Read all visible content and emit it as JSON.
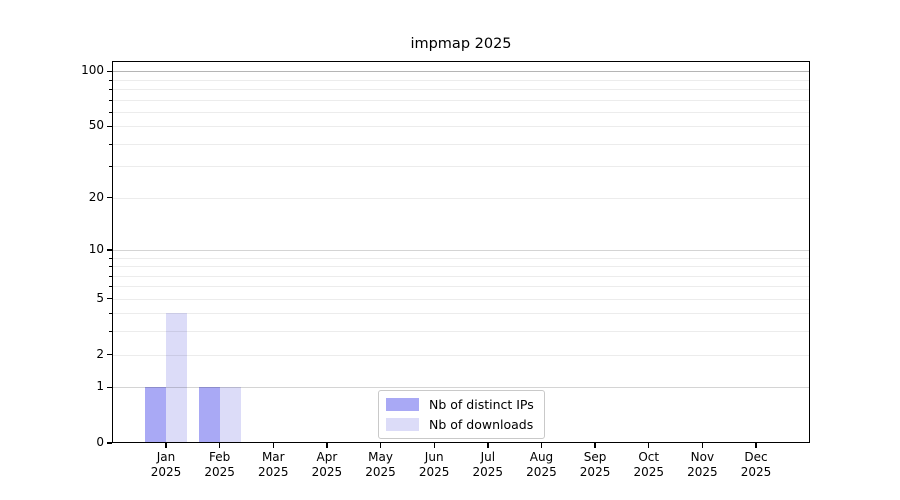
{
  "chart_data": {
    "type": "bar",
    "title": "impmap 2025",
    "categories": [
      {
        "m": "Jan",
        "y": "2025"
      },
      {
        "m": "Feb",
        "y": "2025"
      },
      {
        "m": "Mar",
        "y": "2025"
      },
      {
        "m": "Apr",
        "y": "2025"
      },
      {
        "m": "May",
        "y": "2025"
      },
      {
        "m": "Jun",
        "y": "2025"
      },
      {
        "m": "Jul",
        "y": "2025"
      },
      {
        "m": "Aug",
        "y": "2025"
      },
      {
        "m": "Sep",
        "y": "2025"
      },
      {
        "m": "Oct",
        "y": "2025"
      },
      {
        "m": "Nov",
        "y": "2025"
      },
      {
        "m": "Dec",
        "y": "2025"
      }
    ],
    "series": [
      {
        "name": "Nb of distinct IPs",
        "color": "#a9a9f5",
        "values": [
          1,
          1,
          0,
          0,
          0,
          0,
          0,
          0,
          0,
          0,
          0,
          0
        ]
      },
      {
        "name": "Nb of downloads",
        "color": "#dcdcf8",
        "values": [
          4,
          1,
          0,
          0,
          0,
          0,
          0,
          0,
          0,
          0,
          0,
          0
        ]
      }
    ],
    "scale": "log1p",
    "ylim": [
      0,
      113
    ],
    "yticks": [
      0,
      1,
      2,
      5,
      10,
      20,
      50,
      100
    ],
    "yticks_minor": [
      3,
      4,
      6,
      7,
      8,
      9,
      30,
      40,
      60,
      70,
      80,
      90
    ],
    "grid": {
      "minor_values": [
        2,
        3,
        4,
        5,
        6,
        7,
        8,
        9,
        20,
        30,
        40,
        50,
        60,
        70,
        80,
        90
      ],
      "minor_color": "rgba(0,0,0,0.075)",
      "decade_values": [
        1,
        10,
        100
      ],
      "decade_colors": [
        "rgba(0,0,0,0.17)",
        "rgba(0,0,0,0.17)",
        "rgba(0,0,0,0.29)"
      ]
    },
    "legend_position": "lower center",
    "grid_on": true
  }
}
